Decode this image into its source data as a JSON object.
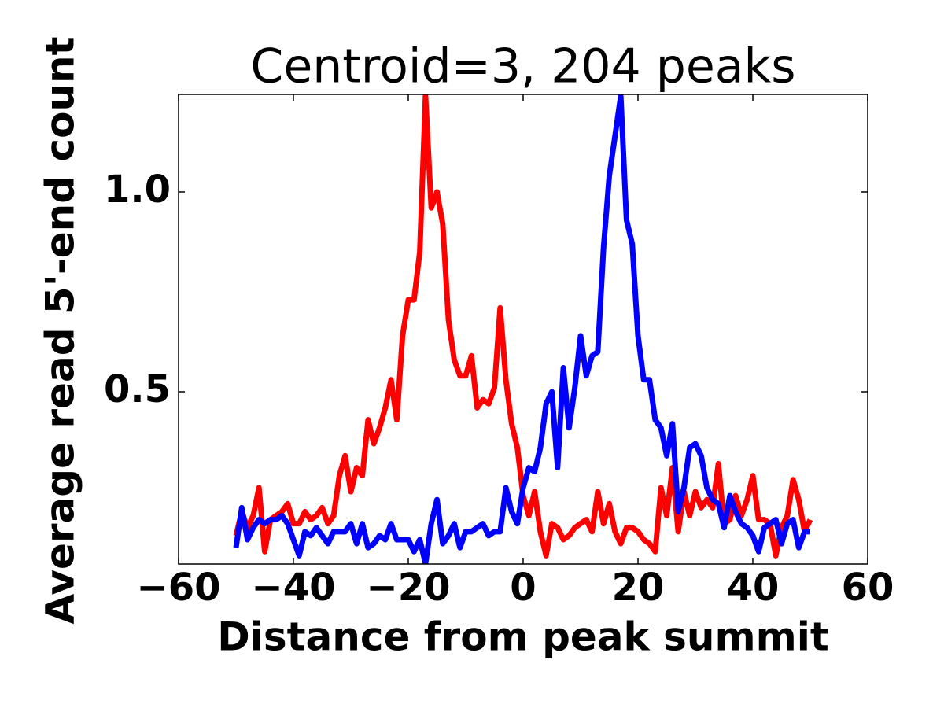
{
  "chart_data": {
    "type": "line",
    "title": "Centroid=3, 204 peaks",
    "xlabel": "Distance from peak summit",
    "ylabel": "Average read 5'-end count",
    "x": [
      -50,
      -49,
      -48,
      -47,
      -46,
      -45,
      -44,
      -43,
      -42,
      -41,
      -40,
      -39,
      -38,
      -37,
      -36,
      -35,
      -34,
      -33,
      -32,
      -31,
      -30,
      -29,
      -28,
      -27,
      -26,
      -25,
      -24,
      -23,
      -22,
      -21,
      -20,
      -19,
      -18,
      -17,
      -16,
      -15,
      -14,
      -13,
      -12,
      -11,
      -10,
      -9,
      -8,
      -7,
      -6,
      -5,
      -4,
      -3,
      -2,
      -1,
      0,
      1,
      2,
      3,
      4,
      5,
      6,
      7,
      8,
      9,
      10,
      11,
      12,
      13,
      14,
      15,
      16,
      17,
      18,
      19,
      20,
      21,
      22,
      23,
      24,
      25,
      26,
      27,
      28,
      29,
      30,
      31,
      32,
      33,
      34,
      35,
      36,
      37,
      38,
      39,
      40,
      41,
      42,
      43,
      44,
      45,
      46,
      47,
      48,
      49,
      50
    ],
    "series": [
      {
        "color": "#ff0000",
        "values": [
          0.14,
          0.2,
          0.16,
          0.19,
          0.26,
          0.1,
          0.18,
          0.19,
          0.2,
          0.22,
          0.17,
          0.17,
          0.2,
          0.18,
          0.19,
          0.21,
          0.17,
          0.19,
          0.29,
          0.34,
          0.25,
          0.31,
          0.29,
          0.43,
          0.37,
          0.41,
          0.46,
          0.53,
          0.43,
          0.64,
          0.73,
          0.73,
          0.85,
          1.24,
          0.96,
          1.0,
          0.92,
          0.68,
          0.58,
          0.54,
          0.54,
          0.59,
          0.46,
          0.48,
          0.47,
          0.51,
          0.71,
          0.53,
          0.42,
          0.36,
          0.24,
          0.19,
          0.25,
          0.15,
          0.09,
          0.17,
          0.16,
          0.13,
          0.14,
          0.16,
          0.17,
          0.18,
          0.15,
          0.25,
          0.17,
          0.22,
          0.15,
          0.12,
          0.16,
          0.16,
          0.15,
          0.13,
          0.12,
          0.1,
          0.26,
          0.19,
          0.31,
          0.15,
          0.25,
          0.19,
          0.25,
          0.21,
          0.23,
          0.21,
          0.32,
          0.17,
          0.18,
          0.24,
          0.19,
          0.23,
          0.29,
          0.18,
          0.18,
          0.17,
          0.09,
          0.16,
          0.19,
          0.28,
          0.23,
          0.15,
          0.18
        ]
      },
      {
        "color": "#0000ff",
        "values": [
          0.11,
          0.21,
          0.13,
          0.16,
          0.18,
          0.17,
          0.18,
          0.18,
          0.19,
          0.17,
          0.13,
          0.09,
          0.15,
          0.14,
          0.16,
          0.14,
          0.12,
          0.15,
          0.15,
          0.15,
          0.17,
          0.12,
          0.17,
          0.11,
          0.12,
          0.14,
          0.13,
          0.17,
          0.13,
          0.13,
          0.13,
          0.1,
          0.13,
          0.07,
          0.17,
          0.23,
          0.12,
          0.14,
          0.17,
          0.11,
          0.15,
          0.15,
          0.16,
          0.17,
          0.14,
          0.15,
          0.15,
          0.26,
          0.2,
          0.17,
          0.26,
          0.31,
          0.3,
          0.36,
          0.47,
          0.5,
          0.31,
          0.56,
          0.41,
          0.51,
          0.64,
          0.54,
          0.59,
          0.6,
          0.86,
          1.04,
          1.14,
          1.24,
          0.93,
          0.87,
          0.64,
          0.53,
          0.53,
          0.43,
          0.41,
          0.34,
          0.42,
          0.2,
          0.26,
          0.36,
          0.37,
          0.34,
          0.26,
          0.23,
          0.22,
          0.16,
          0.24,
          0.2,
          0.17,
          0.16,
          0.14,
          0.1,
          0.16,
          0.17,
          0.18,
          0.12,
          0.17,
          0.18,
          0.11,
          0.15,
          0.15
        ]
      }
    ],
    "xlim": [
      -60,
      60
    ],
    "xticks": [
      {
        "value": -60,
        "label": "−60"
      },
      {
        "value": -40,
        "label": "−40"
      },
      {
        "value": -20,
        "label": "−20"
      },
      0,
      20,
      40,
      60
    ],
    "ylim": [
      0.069,
      1.244
    ],
    "yticks": [
      0.5,
      {
        "value": 1,
        "label": "1.0"
      }
    ]
  }
}
